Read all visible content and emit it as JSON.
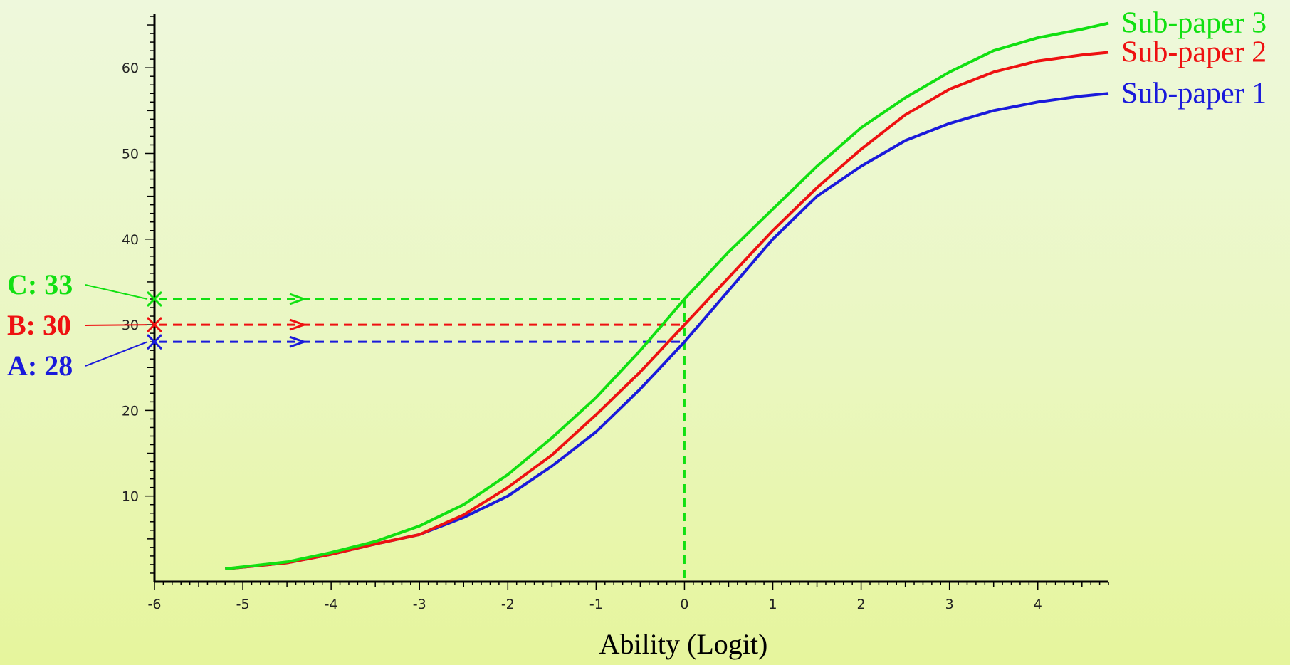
{
  "chart_data": {
    "type": "line",
    "title": "",
    "xlabel": "Ability (Logit)",
    "ylabel": "",
    "xlim": [
      -6,
      4.8
    ],
    "ylim": [
      0,
      66
    ],
    "x_ticks": [
      -6,
      -5,
      -4,
      -3,
      -2,
      -1,
      0,
      1,
      2,
      3,
      4
    ],
    "y_ticks": [
      10,
      20,
      30,
      40,
      50,
      60
    ],
    "grid": false,
    "legend_placement": "right, at line ends",
    "series": [
      {
        "name": "Sub-paper 1",
        "color": "#1a1adb",
        "points": [
          [
            -5.2,
            1.5
          ],
          [
            -4.5,
            2.2
          ],
          [
            -4,
            3.2
          ],
          [
            -3.5,
            4.4
          ],
          [
            -3,
            5.5
          ],
          [
            -2.5,
            7.5
          ],
          [
            -2,
            10
          ],
          [
            -1.5,
            13.5
          ],
          [
            -1,
            17.5
          ],
          [
            -0.5,
            22.5
          ],
          [
            0,
            28
          ],
          [
            0.5,
            34
          ],
          [
            1,
            40
          ],
          [
            1.5,
            45
          ],
          [
            2,
            48.5
          ],
          [
            2.5,
            51.5
          ],
          [
            3,
            53.5
          ],
          [
            3.5,
            55
          ],
          [
            4,
            56
          ],
          [
            4.5,
            56.7
          ],
          [
            4.8,
            57
          ]
        ]
      },
      {
        "name": "Sub-paper 2",
        "color": "#ee1111",
        "points": [
          [
            -5.2,
            1.5
          ],
          [
            -4.5,
            2.2
          ],
          [
            -4,
            3.2
          ],
          [
            -3.5,
            4.4
          ],
          [
            -3,
            5.5
          ],
          [
            -2.5,
            7.8
          ],
          [
            -2,
            11
          ],
          [
            -1.5,
            14.8
          ],
          [
            -1,
            19.5
          ],
          [
            -0.5,
            24.5
          ],
          [
            0,
            30
          ],
          [
            0.5,
            35.5
          ],
          [
            1,
            41
          ],
          [
            1.5,
            46
          ],
          [
            2,
            50.5
          ],
          [
            2.5,
            54.5
          ],
          [
            3,
            57.5
          ],
          [
            3.5,
            59.5
          ],
          [
            4,
            60.8
          ],
          [
            4.5,
            61.5
          ],
          [
            4.8,
            61.8
          ]
        ]
      },
      {
        "name": "Sub-paper 3",
        "color": "#11e011",
        "points": [
          [
            -5.2,
            1.5
          ],
          [
            -4.5,
            2.3
          ],
          [
            -4,
            3.4
          ],
          [
            -3.5,
            4.7
          ],
          [
            -3,
            6.5
          ],
          [
            -2.5,
            9
          ],
          [
            -2,
            12.5
          ],
          [
            -1.5,
            16.8
          ],
          [
            -1,
            21.5
          ],
          [
            -0.5,
            27
          ],
          [
            0,
            33
          ],
          [
            0.5,
            38.5
          ],
          [
            1,
            43.5
          ],
          [
            1.5,
            48.5
          ],
          [
            2,
            53
          ],
          [
            2.5,
            56.5
          ],
          [
            3,
            59.5
          ],
          [
            3.5,
            62
          ],
          [
            4,
            63.5
          ],
          [
            4.5,
            64.5
          ],
          [
            4.8,
            65.2
          ]
        ]
      }
    ],
    "annotations": [
      {
        "label": "C: 33",
        "value": 33,
        "color": "#11e011"
      },
      {
        "label": "B: 30",
        "value": 30,
        "color": "#ee1111"
      },
      {
        "label": "A: 28",
        "value": 28,
        "color": "#1a1adb"
      }
    ],
    "reference_x": 0
  }
}
